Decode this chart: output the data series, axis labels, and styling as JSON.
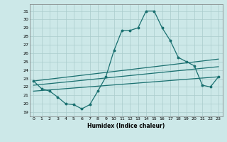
{
  "xlabel": "Humidex (Indice chaleur)",
  "bg_color": "#cce8e8",
  "grid_color": "#aacccc",
  "line_color": "#1a7070",
  "xlim": [
    -0.5,
    23.5
  ],
  "ylim": [
    18.5,
    31.8
  ],
  "yticks": [
    19,
    20,
    21,
    22,
    23,
    24,
    25,
    26,
    27,
    28,
    29,
    30,
    31
  ],
  "xticks": [
    0,
    1,
    2,
    3,
    4,
    5,
    6,
    7,
    8,
    9,
    10,
    11,
    12,
    13,
    14,
    15,
    16,
    17,
    18,
    19,
    20,
    21,
    22,
    23
  ],
  "main_line_x": [
    0,
    1,
    2,
    3,
    4,
    5,
    6,
    7,
    8,
    9,
    10,
    11,
    12,
    13,
    14,
    15,
    16,
    17,
    18,
    19,
    20,
    21,
    22,
    23
  ],
  "main_line_y": [
    22.7,
    21.8,
    21.5,
    20.8,
    20.0,
    19.9,
    19.4,
    19.9,
    21.5,
    23.2,
    26.3,
    28.7,
    28.7,
    29.0,
    31.0,
    31.0,
    29.0,
    27.5,
    25.5,
    25.0,
    24.5,
    22.2,
    22.0,
    23.2
  ],
  "line2_x": [
    0,
    23
  ],
  "line2_y": [
    22.7,
    25.3
  ],
  "line3_x": [
    0,
    23
  ],
  "line3_y": [
    22.2,
    24.4
  ],
  "line4_x": [
    0,
    23
  ],
  "line4_y": [
    21.5,
    23.2
  ]
}
